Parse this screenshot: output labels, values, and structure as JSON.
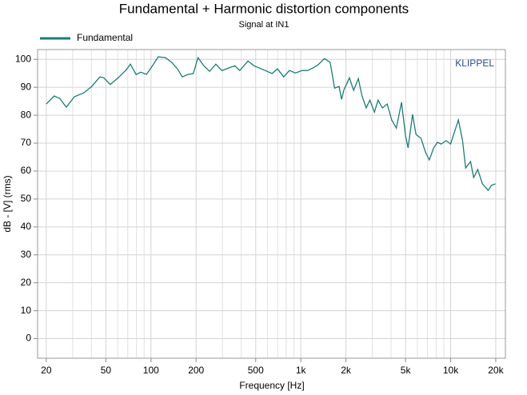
{
  "chart_data": {
    "type": "line",
    "title": "Fundamental + Harmonic distortion components",
    "subtitle": "Signal at IN1",
    "annotation": "KLIPPEL",
    "xlabel": "Frequency [Hz]",
    "ylabel": "dB - [V]  (rms)",
    "xscale": "log",
    "grid": true,
    "legend": "top-left",
    "xlim": [
      17.5,
      23200
    ],
    "ylim": [
      -7,
      103.5
    ],
    "xticks": [
      20,
      50,
      100,
      200,
      500,
      {
        "value": 1000,
        "label": "1k"
      },
      {
        "value": 2000,
        "label": "2k"
      },
      {
        "value": 5000,
        "label": "5k"
      },
      {
        "value": 10000,
        "label": "10k"
      },
      {
        "value": 20000,
        "label": "20k"
      }
    ],
    "xminor": [
      30,
      40,
      60,
      70,
      80,
      90,
      300,
      400,
      600,
      700,
      800,
      900,
      3000,
      4000,
      6000,
      7000,
      8000,
      9000
    ],
    "yticks": [
      0,
      10,
      20,
      30,
      40,
      50,
      60,
      70,
      80,
      90,
      100
    ],
    "x": [
      20,
      22.6,
      24.6,
      27.2,
      30.8,
      35.6,
      40.2,
      45.6,
      48.4,
      53.4,
      60.4,
      68.5,
      72.8,
      79.5,
      85.5,
      93.1,
      101.4,
      111.7,
      124.9,
      137.7,
      150.2,
      161.7,
      176.2,
      191.5,
      206,
      225.6,
      246,
      271,
      297,
      329,
      363,
      391,
      444,
      487,
      563,
      643,
      699,
      769,
      839,
      922,
      1018,
      1110,
      1220,
      1300,
      1440,
      1570,
      1680,
      1800,
      1870,
      1940,
      2110,
      2250,
      2420,
      2560,
      2730,
      2890,
      3100,
      3280,
      3500,
      3770,
      4040,
      4340,
      4700,
      5000,
      5200,
      5570,
      5870,
      6350,
      6780,
      7200,
      7700,
      8160,
      8650,
      9320,
      10000,
      10730,
      11260,
      11990,
      12600,
      13580,
      14250,
      15170,
      16310,
      17810,
      18700,
      19860
    ],
    "series": [
      {
        "name": "Fundamental",
        "color": "#1e7b74",
        "values": [
          84,
          86.9,
          86,
          82.9,
          86.6,
          88,
          90.3,
          93.7,
          93.4,
          91,
          93.4,
          96.3,
          98.3,
          94.6,
          95.4,
          94.6,
          97.4,
          100.9,
          100.6,
          98.9,
          96.6,
          93.7,
          94.6,
          94.9,
          100.6,
          97.7,
          95.7,
          98.3,
          96,
          96.9,
          97.7,
          96,
          99.4,
          97.7,
          96.3,
          94.9,
          96.6,
          93.7,
          96,
          95.1,
          96,
          96,
          97.1,
          98,
          100.3,
          98.9,
          89.7,
          90.3,
          85.7,
          89.1,
          93.4,
          88.9,
          93.1,
          86.9,
          82.6,
          85.4,
          81.1,
          85.4,
          82.6,
          84,
          78.3,
          75.4,
          84.6,
          72.6,
          68.3,
          80.3,
          73.1,
          71.7,
          66.9,
          64,
          68.3,
          70.3,
          69.7,
          70.9,
          69.7,
          74.9,
          78.3,
          71.1,
          61.1,
          63.4,
          57.7,
          60.6,
          55.4,
          53.1,
          54.9,
          55.4
        ]
      }
    ]
  }
}
